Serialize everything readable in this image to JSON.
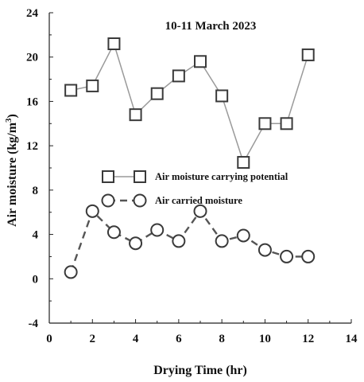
{
  "chart_data": {
    "type": "line",
    "title": "10-11 March 2023",
    "xlabel": "Drying Time (hr)",
    "ylabel": "Air moisture (kg/m³)",
    "xlim": [
      0,
      14
    ],
    "ylim": [
      -4,
      24
    ],
    "xticks": [
      "0",
      "2",
      "4",
      "6",
      "8",
      "10",
      "12",
      "14"
    ],
    "yticks": [
      "-4",
      "0",
      "4",
      "8",
      "12",
      "16",
      "20",
      "24"
    ],
    "grid": false,
    "legend_position": "center-left",
    "x": [
      1,
      2,
      3,
      4,
      5,
      6,
      7,
      8,
      9,
      10,
      11,
      12
    ],
    "series": [
      {
        "name": "Air moisture carrying potential",
        "marker": "square",
        "line_style": "solid",
        "color": "#9a9a9a",
        "values": [
          17.0,
          17.4,
          21.2,
          14.8,
          16.7,
          18.3,
          19.6,
          16.5,
          10.5,
          14.0,
          14.0,
          20.2
        ]
      },
      {
        "name": "Air carried moisture",
        "marker": "circle",
        "line_style": "dashed",
        "color": "#555555",
        "values": [
          0.6,
          6.1,
          4.2,
          3.2,
          4.4,
          3.4,
          6.1,
          3.4,
          3.9,
          2.6,
          2.0,
          2.0
        ]
      }
    ]
  }
}
